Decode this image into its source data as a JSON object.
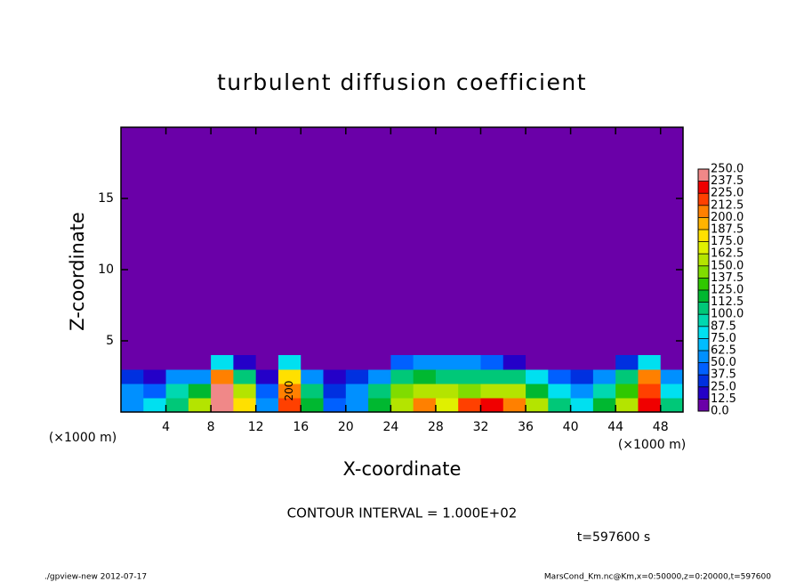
{
  "chart_data": {
    "type": "contour",
    "title": "turbulent diffusion coefficient",
    "xlabel": "X-coordinate",
    "ylabel": "Z-coordinate",
    "x_unit_left": "(×1000 m)",
    "x_unit_right": "(×1000 m)",
    "xlim": [
      0,
      50
    ],
    "ylim": [
      0,
      20
    ],
    "xticks": [
      4,
      8,
      12,
      16,
      20,
      24,
      28,
      32,
      36,
      40,
      44,
      48
    ],
    "yticks": [
      5,
      10,
      15
    ],
    "field": {
      "x": [
        1,
        3,
        5,
        7,
        9,
        11,
        13,
        15,
        17,
        19,
        21,
        23,
        25,
        27,
        29,
        31,
        33,
        35,
        37,
        39,
        41,
        43,
        45,
        47,
        49
      ],
      "z": [
        0.5,
        1.5,
        2.5,
        3.5
      ],
      "values": [
        [
          60,
          80,
          100,
          150,
          250,
          180,
          60,
          220,
          120,
          40,
          60,
          120,
          150,
          200,
          170,
          220,
          230,
          200,
          160,
          100,
          80,
          120,
          160,
          230,
          100
        ],
        [
          60,
          40,
          90,
          120,
          240,
          150,
          40,
          200,
          110,
          30,
          50,
          100,
          140,
          160,
          150,
          140,
          160,
          150,
          120,
          80,
          60,
          90,
          130,
          220,
          80
        ],
        [
          30,
          20,
          50,
          60,
          200,
          100,
          20,
          180,
          60,
          20,
          30,
          60,
          100,
          120,
          110,
          100,
          110,
          100,
          80,
          40,
          30,
          50,
          100,
          200,
          60
        ],
        [
          0,
          0,
          0,
          10,
          80,
          20,
          0,
          80,
          0,
          0,
          0,
          0,
          40,
          60,
          60,
          50,
          40,
          20,
          0,
          0,
          0,
          0,
          30,
          80,
          0
        ]
      ]
    },
    "contour_label": "200",
    "levels": [
      {
        "value": 0,
        "label": "0.0"
      },
      {
        "value": 12.5,
        "label": "12.5"
      },
      {
        "value": 25,
        "label": "25.0"
      },
      {
        "value": 37.5,
        "label": "37.5"
      },
      {
        "value": 50,
        "label": "50.0"
      },
      {
        "value": 62.5,
        "label": "62.5"
      },
      {
        "value": 75,
        "label": "75.0"
      },
      {
        "value": 87.5,
        "label": "87.5"
      },
      {
        "value": 100,
        "label": "100.0"
      },
      {
        "value": 112.5,
        "label": "112.5"
      },
      {
        "value": 125,
        "label": "125.0"
      },
      {
        "value": 137.5,
        "label": "137.5"
      },
      {
        "value": 150,
        "label": "150.0"
      },
      {
        "value": 162.5,
        "label": "162.5"
      },
      {
        "value": 175,
        "label": "175.0"
      },
      {
        "value": 187.5,
        "label": "187.5"
      },
      {
        "value": 200,
        "label": "200.0"
      },
      {
        "value": 212.5,
        "label": "212.5"
      },
      {
        "value": 225,
        "label": "225.0"
      },
      {
        "value": 237.5,
        "label": "237.5"
      },
      {
        "value": 250,
        "label": "250.0"
      }
    ],
    "level_colors": [
      "#6a00a8",
      "#2400c8",
      "#0030e0",
      "#0060ff",
      "#0090ff",
      "#00bcff",
      "#00e0f0",
      "#00d8b0",
      "#00c878",
      "#00b830",
      "#30c800",
      "#80dc00",
      "#b4e400",
      "#e0f000",
      "#ffe000",
      "#ffb400",
      "#ff8000",
      "#ff4000",
      "#f00000",
      "#f08888"
    ],
    "contour_interval": "CONTOUR INTERVAL = 1.000E+02",
    "time_label": "t=597600 s",
    "footer_left": "./gpview-new  2012-07-17",
    "footer_right": "MarsCond_Km.nc@Km,x=0:50000,z=0:20000,t=597600"
  }
}
